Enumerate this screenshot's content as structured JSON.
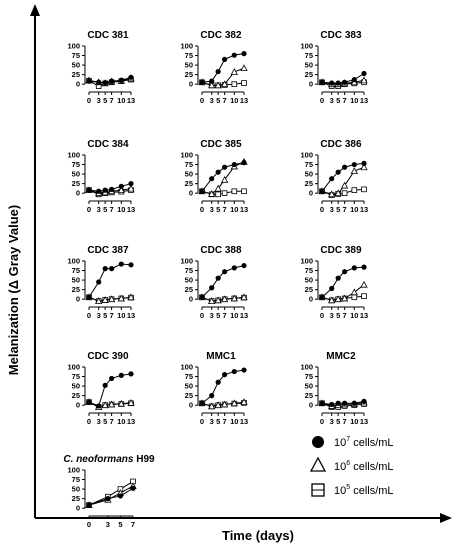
{
  "figure": {
    "ylabel": "Melanization (Δ Gray Value)",
    "xlabel": "Time (days)"
  },
  "legend": {
    "entries": [
      {
        "series": "1e7",
        "marker": "circle-filled",
        "base": "10",
        "exp": "7",
        "unit": " cells/mL"
      },
      {
        "series": "1e6",
        "marker": "triangle-open",
        "base": "10",
        "exp": "6",
        "unit": " cells/mL"
      },
      {
        "series": "1e5",
        "marker": "square-open",
        "base": "10",
        "exp": "5",
        "unit": " cells/mL"
      }
    ]
  },
  "chart_data": [
    {
      "type": "line",
      "title": "CDC 381",
      "x": [
        0,
        3,
        5,
        7,
        10,
        13
      ],
      "ylim": [
        0,
        100
      ],
      "yticks": [
        0,
        25,
        50,
        75,
        100
      ],
      "series": [
        {
          "key": "1e7",
          "values": [
            8,
            5,
            4,
            8,
            10,
            18
          ]
        },
        {
          "key": "1e6",
          "values": [
            10,
            5,
            3,
            7,
            9,
            15
          ]
        },
        {
          "key": "1e5",
          "values": [
            9,
            -5,
            2,
            5,
            8,
            12
          ]
        }
      ]
    },
    {
      "type": "line",
      "title": "CDC 382",
      "x": [
        0,
        3,
        5,
        7,
        10,
        13
      ],
      "ylim": [
        0,
        100
      ],
      "yticks": [
        0,
        25,
        50,
        75,
        100
      ],
      "series": [
        {
          "key": "1e7",
          "values": [
            5,
            8,
            33,
            65,
            76,
            80
          ]
        },
        {
          "key": "1e6",
          "values": [
            5,
            -3,
            -3,
            0,
            32,
            42
          ]
        },
        {
          "key": "1e5",
          "values": [
            5,
            -3,
            -3,
            -2,
            0,
            3
          ]
        }
      ]
    },
    {
      "type": "line",
      "title": "CDC 383",
      "x": [
        0,
        3,
        5,
        7,
        10,
        13
      ],
      "ylim": [
        0,
        100
      ],
      "yticks": [
        0,
        25,
        50,
        75,
        100
      ],
      "series": [
        {
          "key": "1e7",
          "values": [
            5,
            3,
            3,
            5,
            12,
            28
          ]
        },
        {
          "key": "1e6",
          "values": [
            5,
            0,
            0,
            2,
            5,
            10
          ]
        },
        {
          "key": "1e5",
          "values": [
            5,
            -5,
            -5,
            0,
            2,
            5
          ]
        }
      ]
    },
    {
      "type": "line",
      "title": "CDC 384",
      "x": [
        0,
        3,
        5,
        7,
        10,
        13
      ],
      "ylim": [
        0,
        100
      ],
      "yticks": [
        0,
        25,
        50,
        75,
        100
      ],
      "series": [
        {
          "key": "1e7",
          "values": [
            8,
            5,
            8,
            10,
            18,
            25
          ]
        },
        {
          "key": "1e6",
          "values": [
            8,
            0,
            2,
            5,
            8,
            12
          ]
        },
        {
          "key": "1e5",
          "values": [
            8,
            -3,
            0,
            2,
            4,
            8
          ]
        }
      ]
    },
    {
      "type": "line",
      "title": "CDC  385",
      "x": [
        0,
        3,
        5,
        7,
        10,
        13
      ],
      "ylim": [
        0,
        100
      ],
      "yticks": [
        0,
        25,
        50,
        75,
        100
      ],
      "series": [
        {
          "key": "1e7",
          "values": [
            5,
            38,
            55,
            68,
            75,
            80
          ]
        },
        {
          "key": "1e6",
          "values": [
            5,
            -2,
            12,
            35,
            70,
            82
          ]
        },
        {
          "key": "1e5",
          "values": [
            5,
            -3,
            -3,
            0,
            5,
            5
          ]
        }
      ]
    },
    {
      "type": "line",
      "title": "CDC 386",
      "x": [
        0,
        3,
        5,
        7,
        10,
        13
      ],
      "ylim": [
        0,
        100
      ],
      "yticks": [
        0,
        25,
        50,
        75,
        100
      ],
      "series": [
        {
          "key": "1e7",
          "values": [
            5,
            38,
            55,
            68,
            75,
            78
          ]
        },
        {
          "key": "1e6",
          "values": [
            5,
            -3,
            0,
            20,
            58,
            68
          ]
        },
        {
          "key": "1e5",
          "values": [
            5,
            -5,
            -2,
            0,
            8,
            10
          ]
        }
      ]
    },
    {
      "type": "line",
      "title": "CDC 387",
      "x": [
        0,
        3,
        5,
        7,
        10,
        13
      ],
      "ylim": [
        0,
        100
      ],
      "yticks": [
        0,
        25,
        50,
        75,
        100
      ],
      "series": [
        {
          "key": "1e7",
          "values": [
            5,
            45,
            80,
            80,
            92,
            90
          ]
        },
        {
          "key": "1e6",
          "values": [
            5,
            -5,
            -2,
            0,
            2,
            5
          ]
        },
        {
          "key": "1e5",
          "values": [
            5,
            -5,
            -2,
            0,
            2,
            4
          ]
        }
      ]
    },
    {
      "type": "line",
      "title": "CDC 388",
      "x": [
        0,
        3,
        5,
        7,
        10,
        13
      ],
      "ylim": [
        0,
        100
      ],
      "yticks": [
        0,
        25,
        50,
        75,
        100
      ],
      "series": [
        {
          "key": "1e7",
          "values": [
            5,
            30,
            55,
            72,
            82,
            88
          ]
        },
        {
          "key": "1e6",
          "values": [
            5,
            -5,
            -3,
            0,
            2,
            5
          ]
        },
        {
          "key": "1e5",
          "values": [
            5,
            -5,
            -3,
            0,
            2,
            4
          ]
        }
      ]
    },
    {
      "type": "line",
      "title": "CDC 389",
      "x": [
        0,
        3,
        5,
        7,
        10,
        13
      ],
      "ylim": [
        0,
        100
      ],
      "yticks": [
        0,
        25,
        50,
        75,
        100
      ],
      "series": [
        {
          "key": "1e7",
          "values": [
            5,
            28,
            55,
            72,
            82,
            84
          ]
        },
        {
          "key": "1e6",
          "values": [
            5,
            -3,
            0,
            2,
            18,
            38
          ]
        },
        {
          "key": "1e5",
          "values": [
            5,
            -3,
            0,
            2,
            5,
            8
          ]
        }
      ]
    },
    {
      "type": "line",
      "title": "CDC 390",
      "x": [
        0,
        3,
        5,
        7,
        10,
        13
      ],
      "ylim": [
        0,
        100
      ],
      "yticks": [
        0,
        25,
        50,
        75,
        100
      ],
      "series": [
        {
          "key": "1e7",
          "values": [
            8,
            -2,
            52,
            70,
            78,
            82
          ]
        },
        {
          "key": "1e6",
          "values": [
            8,
            -5,
            0,
            2,
            4,
            6
          ]
        },
        {
          "key": "1e5",
          "values": [
            8,
            -5,
            0,
            2,
            3,
            5
          ]
        }
      ]
    },
    {
      "type": "line",
      "title": "MMC1",
      "x": [
        0,
        3,
        5,
        7,
        10,
        13
      ],
      "ylim": [
        0,
        100
      ],
      "yticks": [
        0,
        25,
        50,
        75,
        100
      ],
      "series": [
        {
          "key": "1e7",
          "values": [
            5,
            25,
            60,
            80,
            88,
            92
          ]
        },
        {
          "key": "1e6",
          "values": [
            5,
            -3,
            0,
            2,
            5,
            8
          ]
        },
        {
          "key": "1e5",
          "values": [
            5,
            -3,
            0,
            2,
            4,
            6
          ]
        }
      ]
    },
    {
      "type": "line",
      "title": "MMC2",
      "x": [
        0,
        3,
        5,
        7,
        10,
        13
      ],
      "ylim": [
        0,
        100
      ],
      "yticks": [
        0,
        25,
        50,
        75,
        100
      ],
      "series": [
        {
          "key": "1e7",
          "values": [
            5,
            2,
            5,
            5,
            5,
            10
          ]
        },
        {
          "key": "1e6",
          "values": [
            5,
            -2,
            0,
            2,
            3,
            7
          ]
        },
        {
          "key": "1e5",
          "values": [
            5,
            -5,
            -5,
            -2,
            0,
            3
          ]
        }
      ]
    },
    {
      "type": "line",
      "title_italic": "C. neoformans",
      "title_rest": " H99",
      "x": [
        0,
        3,
        5,
        7
      ],
      "ylim": [
        0,
        100
      ],
      "yticks": [
        0,
        25,
        50,
        75,
        100
      ],
      "series": [
        {
          "key": "1e7",
          "values": [
            8,
            25,
            32,
            52
          ]
        },
        {
          "key": "1e6",
          "values": [
            8,
            22,
            40,
            58
          ]
        },
        {
          "key": "1e5",
          "values": [
            8,
            30,
            50,
            70
          ]
        }
      ]
    }
  ]
}
